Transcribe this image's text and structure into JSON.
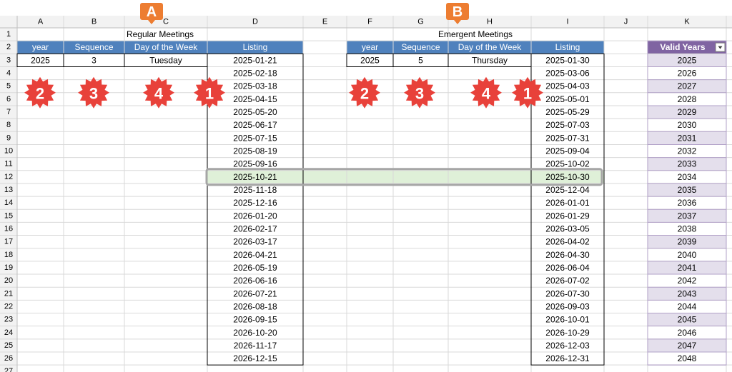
{
  "columns": [
    "A",
    "B",
    "C",
    "D",
    "E",
    "F",
    "G",
    "H",
    "I",
    "J",
    "K"
  ],
  "rows": [
    1,
    2,
    3,
    4,
    5,
    6,
    7,
    8,
    9,
    10,
    11,
    12,
    13,
    14,
    15,
    16,
    17,
    18,
    19,
    20,
    21,
    22,
    23,
    24,
    25,
    26,
    27
  ],
  "regular": {
    "title": "Regular Meetings",
    "headers": [
      "year",
      "Sequence",
      "Day of the Week",
      "Listing"
    ],
    "inputs": [
      2025,
      3,
      "Tuesday"
    ],
    "listing": [
      "2025-01-21",
      "2025-02-18",
      "2025-03-18",
      "2025-04-15",
      "2025-05-20",
      "2025-06-17",
      "2025-07-15",
      "2025-08-19",
      "2025-09-16",
      "2025-10-21",
      "2025-11-18",
      "2025-12-16",
      "2026-01-20",
      "2026-02-17",
      "2026-03-17",
      "2026-04-21",
      "2026-05-19",
      "2026-06-16",
      "2026-07-21",
      "2026-08-18",
      "2026-09-15",
      "2026-10-20",
      "2026-11-17",
      "2026-12-15"
    ]
  },
  "emergent": {
    "title": "Emergent Meetings",
    "headers": [
      "year",
      "Sequence",
      "Day of the Week",
      "Listing"
    ],
    "inputs": [
      2025,
      5,
      "Thursday"
    ],
    "listing": [
      "2025-01-30",
      "2025-03-06",
      "2025-04-03",
      "2025-05-01",
      "2025-05-29",
      "2025-07-03",
      "2025-07-31",
      "2025-09-04",
      "2025-10-02",
      "2025-10-30",
      "2025-12-04",
      "2026-01-01",
      "2026-01-29",
      "2026-03-05",
      "2026-04-02",
      "2026-04-30",
      "2026-06-04",
      "2026-07-02",
      "2026-07-30",
      "2026-09-03",
      "2026-10-01",
      "2026-10-29",
      "2026-12-03",
      "2026-12-31"
    ]
  },
  "valid_years": {
    "header": "Valid Years",
    "values": [
      2025,
      2026,
      2027,
      2028,
      2029,
      2030,
      2031,
      2032,
      2033,
      2034,
      2035,
      2036,
      2037,
      2038,
      2039,
      2040,
      2041,
      2042,
      2043,
      2044,
      2045,
      2046,
      2047,
      2048
    ]
  },
  "callouts": {
    "sections": [
      "A",
      "B"
    ],
    "steps": [
      "2",
      "3",
      "4",
      "1"
    ]
  }
}
